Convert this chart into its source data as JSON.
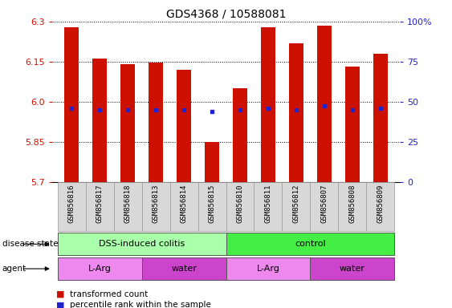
{
  "title": "GDS4368 / 10588081",
  "samples": [
    "GSM856816",
    "GSM856817",
    "GSM856818",
    "GSM856813",
    "GSM856814",
    "GSM856815",
    "GSM856810",
    "GSM856811",
    "GSM856812",
    "GSM856807",
    "GSM856808",
    "GSM856809"
  ],
  "red_values": [
    6.28,
    6.16,
    6.14,
    6.145,
    6.12,
    5.85,
    6.05,
    6.28,
    6.22,
    6.285,
    6.13,
    6.18
  ],
  "blue_values": [
    5.975,
    5.968,
    5.968,
    5.97,
    5.97,
    5.962,
    5.97,
    5.974,
    5.97,
    5.983,
    5.97,
    5.974
  ],
  "ymin": 5.7,
  "ymax": 6.3,
  "yticks": [
    5.7,
    5.85,
    6.0,
    6.15,
    6.3
  ],
  "right_ytick_vals": [
    0,
    25,
    50,
    75,
    100
  ],
  "right_ytick_labels": [
    "0",
    "25",
    "50",
    "75",
    "100%"
  ],
  "bar_color": "#cc1100",
  "dot_color": "#2222cc",
  "bar_width": 0.5,
  "disease_state_groups": [
    {
      "label": "DSS-induced colitis",
      "start": 0,
      "end": 5,
      "color": "#aaffaa"
    },
    {
      "label": "control",
      "start": 6,
      "end": 11,
      "color": "#44ee44"
    }
  ],
  "agent_groups": [
    {
      "label": "L-Arg",
      "start": 0,
      "end": 2,
      "color": "#ee88ee"
    },
    {
      "label": "water",
      "start": 3,
      "end": 5,
      "color": "#cc44cc"
    },
    {
      "label": "L-Arg",
      "start": 6,
      "end": 8,
      "color": "#ee88ee"
    },
    {
      "label": "water",
      "start": 9,
      "end": 11,
      "color": "#cc44cc"
    }
  ],
  "legend_red_label": "transformed count",
  "legend_blue_label": "percentile rank within the sample",
  "tick_color_left": "#cc1100",
  "tick_color_right": "#2222cc",
  "background_color": "#ffffff"
}
